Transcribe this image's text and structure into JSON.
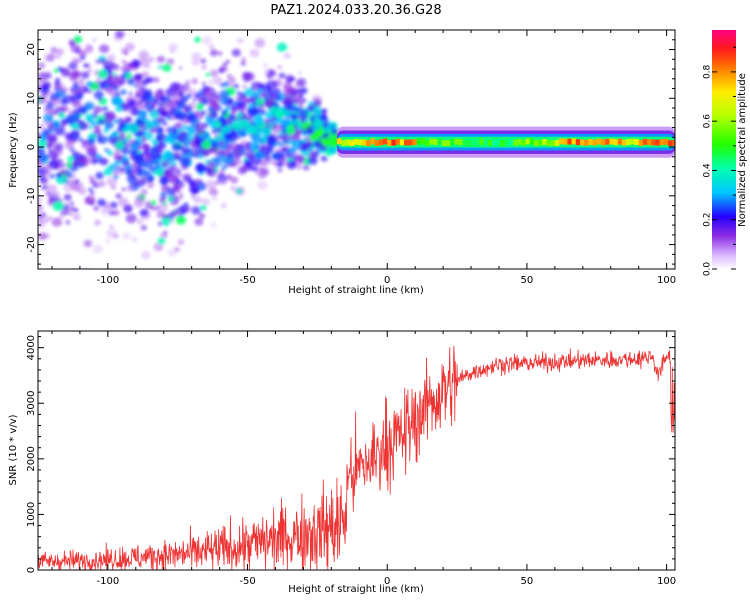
{
  "chart_data": [
    {
      "type": "heatmap",
      "title": "PAZ1.2024.033.20.36.G28",
      "xlabel": "Height of straight line (km)",
      "ylabel": "Frequency (Hz)",
      "xlim": [
        -125,
        103
      ],
      "ylim": [
        -25,
        24
      ],
      "xticks": [
        -100,
        -50,
        0,
        50,
        100
      ],
      "yticks": [
        -20,
        -10,
        0,
        10,
        20
      ],
      "colorbar": {
        "label": "Normalized spectral amplitude",
        "range": [
          0,
          0.97
        ],
        "ticks": [
          0.0,
          0.2,
          0.4,
          0.6,
          0.8
        ]
      },
      "ridge": {
        "description": "Scattered energy spread across ±20 Hz below about -20 km; single narrow high-amplitude band near 1 Hz from about -18 km to 103 km",
        "points": [
          {
            "x": -120,
            "y": 3,
            "spread": 20,
            "amplitude": 0.25
          },
          {
            "x": -100,
            "y": 4,
            "spread": 18,
            "amplitude": 0.3
          },
          {
            "x": -75,
            "y": -1,
            "spread": 16,
            "amplitude": 0.28
          },
          {
            "x": -50,
            "y": 6,
            "spread": 12,
            "amplitude": 0.32
          },
          {
            "x": -30,
            "y": 5,
            "spread": 8,
            "amplitude": 0.35
          },
          {
            "x": -18,
            "y": 1,
            "spread": 2,
            "amplitude": 0.7
          },
          {
            "x": 0,
            "y": 1,
            "spread": 1.5,
            "amplitude": 0.85
          },
          {
            "x": 50,
            "y": 1,
            "spread": 1.5,
            "amplitude": 0.6
          },
          {
            "x": 100,
            "y": 1,
            "spread": 1.5,
            "amplitude": 0.8
          }
        ]
      }
    },
    {
      "type": "line",
      "xlabel": "Height of straight line (km)",
      "ylabel": "SNR (10 * v/v)",
      "xlim": [
        -125,
        103
      ],
      "ylim": [
        0,
        4300
      ],
      "xticks": [
        -100,
        -50,
        0,
        50,
        100
      ],
      "yticks": [
        0,
        1000,
        2000,
        3000,
        4000
      ],
      "color": "#ee3333",
      "series": [
        {
          "x": [
            -125,
            -110,
            -100,
            -90,
            -80,
            -70,
            -60,
            -50,
            -40,
            -30,
            -20,
            -15,
            -14,
            -10,
            -5,
            0,
            5,
            10,
            15,
            20,
            25,
            30,
            40,
            50,
            60,
            70,
            80,
            90,
            95,
            97,
            100,
            103
          ],
          "values": [
            150,
            170,
            190,
            220,
            260,
            300,
            370,
            450,
            550,
            650,
            750,
            900,
            1700,
            1800,
            2000,
            2300,
            2400,
            2700,
            3000,
            3200,
            3400,
            3550,
            3700,
            3720,
            3740,
            3770,
            3780,
            3800,
            3850,
            3500,
            3850,
            3800
          ]
        }
      ]
    }
  ]
}
